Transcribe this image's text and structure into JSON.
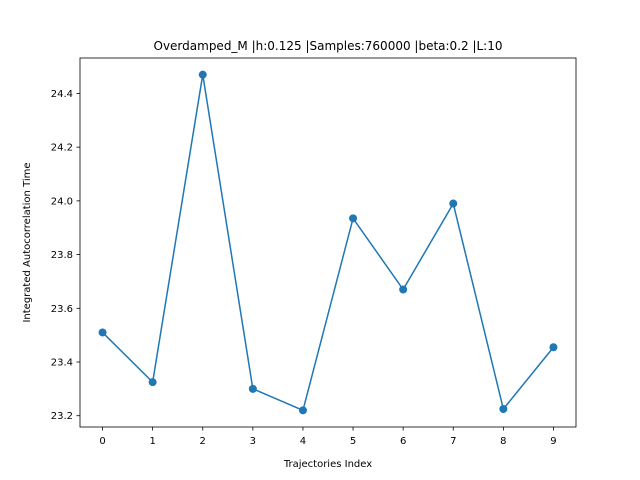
{
  "chart_data": {
    "type": "line",
    "title": "Overdamped_M |h:0.125 |Samples:760000 |beta:0.2 |L:10",
    "xlabel": "Trajectories Index",
    "ylabel": "Integrated Autocorrelation Time",
    "x": [
      0,
      1,
      2,
      3,
      4,
      5,
      6,
      7,
      8,
      9
    ],
    "y": [
      23.51,
      23.325,
      24.47,
      23.3,
      23.22,
      23.935,
      23.67,
      23.99,
      23.225,
      23.455
    ],
    "xlim": [
      -0.45,
      9.45
    ],
    "ylim": [
      23.158,
      24.532
    ],
    "xticks": [
      0,
      1,
      2,
      3,
      4,
      5,
      6,
      7,
      8,
      9
    ],
    "yticks": [
      23.2,
      23.4,
      23.6,
      23.8,
      24.0,
      24.2,
      24.4
    ],
    "ytick_labels": [
      "23.2",
      "23.4",
      "23.6",
      "23.8",
      "24.0",
      "24.2",
      "24.4"
    ],
    "markers": true,
    "grid": false,
    "line_color": "#1f77b4"
  }
}
